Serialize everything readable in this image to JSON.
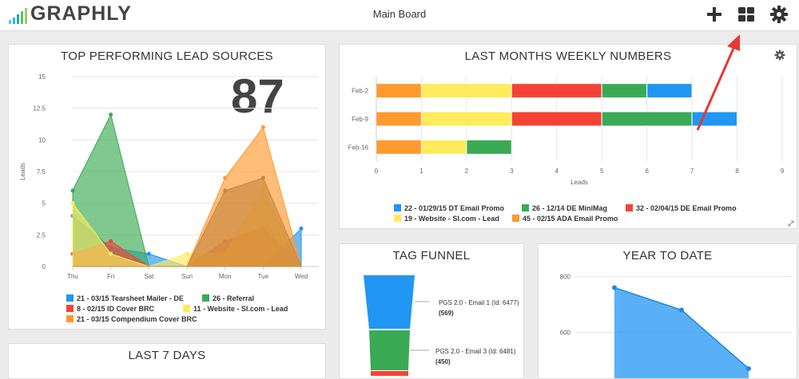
{
  "header": {
    "logo_text": "GRAPHLY",
    "board_title": "Main Board",
    "icons": [
      "plus-icon",
      "grid-icon",
      "gear-icon"
    ]
  },
  "colors": {
    "blue": "#2196f3",
    "green": "#3aaa55",
    "red": "#f44336",
    "yellow": "#ffeb5b",
    "orange": "#ff9a2e",
    "annotation_arrow": "#e53935"
  },
  "panels": {
    "lead_sources": {
      "title": "TOP PERFORMING LEAD SOURCES",
      "big_number": "87",
      "legend": [
        {
          "label": "21 - 03/15 Tearsheet Mailer - DE",
          "color": "#2196f3"
        },
        {
          "label": "26 - Referral",
          "color": "#3aaa55"
        },
        {
          "label": "8 - 02/15 ID Cover BRC",
          "color": "#f44336"
        },
        {
          "label": "11 - Website - SI.com - Lead",
          "color": "#ffeb5b"
        },
        {
          "label": "21 - 03/15 Compendium Cover BRC",
          "color": "#ff9a2e"
        }
      ]
    },
    "weekly": {
      "title": "LAST MONTHS WEEKLY NUMBERS",
      "legend": [
        {
          "label": "22 - 01/29/15 DT Email Promo",
          "color": "#2196f3"
        },
        {
          "label": "26 - 12/14 DE MiniMag",
          "color": "#3aaa55"
        },
        {
          "label": "32 - 02/04/15 DE Email Promo",
          "color": "#f44336"
        },
        {
          "label": "19 - Website - SI.com - Lead",
          "color": "#ffeb5b"
        },
        {
          "label": "45 - 02/15 ADA Email Promo",
          "color": "#ff9a2e"
        }
      ]
    },
    "tag_funnel": {
      "title": "TAG FUNNEL",
      "steps": [
        {
          "label": "PGS 2.0 - Email 1 (Id: 6477)",
          "count": "(569)",
          "color": "#2196f3"
        },
        {
          "label": "PGS 2.0 - Email 3 (Id: 6481)",
          "count": "(450)",
          "color": "#3aaa55"
        }
      ]
    },
    "year_to_date": {
      "title": "YEAR TO DATE"
    },
    "last_7_days": {
      "title": "LAST 7 DAYS"
    }
  },
  "chart_data": [
    {
      "type": "area",
      "categories": [
        "Thu",
        "Fri",
        "Sat",
        "Sun",
        "Mon",
        "Tue",
        "Wed"
      ],
      "ylabel": "Leads",
      "ylim": [
        0,
        15
      ],
      "yticks": [
        "0",
        "2.5",
        "5",
        "7.5",
        "10",
        "12.5",
        "15"
      ],
      "grid": true,
      "series": [
        {
          "name": "21 - 03/15 Tearsheet Mailer - DE",
          "color": "#2196f3",
          "values": [
            4,
            1.5,
            1,
            0,
            0,
            0,
            3
          ]
        },
        {
          "name": "26 - Referral",
          "color": "#3aaa55",
          "values": [
            6,
            12,
            0,
            0,
            0,
            0,
            0
          ]
        },
        {
          "name": "8 - 02/15 ID Cover BRC",
          "color": "#f44336",
          "values": [
            1,
            2,
            0,
            0,
            2,
            3,
            0
          ]
        },
        {
          "name": "11 - Website - SI.com - Lead",
          "color": "#ffeb5b",
          "values": [
            5,
            1,
            0,
            1,
            1,
            6,
            0
          ]
        },
        {
          "name": "21 - 03/15 Compendium Cover BRC",
          "color": "#ff9a2e",
          "values": [
            0,
            0,
            0,
            0,
            7,
            11,
            0
          ]
        },
        {
          "name": "",
          "color": "#c8873d",
          "values": [
            0,
            0,
            0,
            0,
            6,
            7,
            0
          ]
        }
      ]
    },
    {
      "type": "bar",
      "orientation": "horizontal",
      "stacked": true,
      "categories": [
        "Feb-2",
        "Feb-9",
        "Feb-16"
      ],
      "xlabel": "Leads",
      "xlim": [
        0,
        9
      ],
      "xticks": [
        "0",
        "1",
        "2",
        "3",
        "4",
        "5",
        "6",
        "7",
        "8",
        "9"
      ],
      "series": [
        {
          "name": "45 - 02/15 ADA Email Promo",
          "color": "#ff9a2e",
          "values": [
            1,
            1,
            1
          ]
        },
        {
          "name": "19 - Website - SI.com - Lead",
          "color": "#ffeb5b",
          "values": [
            2,
            2,
            1
          ]
        },
        {
          "name": "32 - 02/04/15 DE Email Promo",
          "color": "#f44336",
          "values": [
            2,
            2,
            0
          ]
        },
        {
          "name": "26 - 12/14 DE MiniMag",
          "color": "#3aaa55",
          "values": [
            1,
            2,
            1
          ]
        },
        {
          "name": "22 - 01/29/15 DT Email Promo",
          "color": "#2196f3",
          "values": [
            1,
            1,
            0
          ]
        }
      ]
    },
    {
      "type": "area",
      "yticks": [
        "600",
        "800"
      ],
      "ylim": [
        430,
        830
      ],
      "color": "#2196f3",
      "values": [
        760,
        680,
        470
      ]
    }
  ]
}
